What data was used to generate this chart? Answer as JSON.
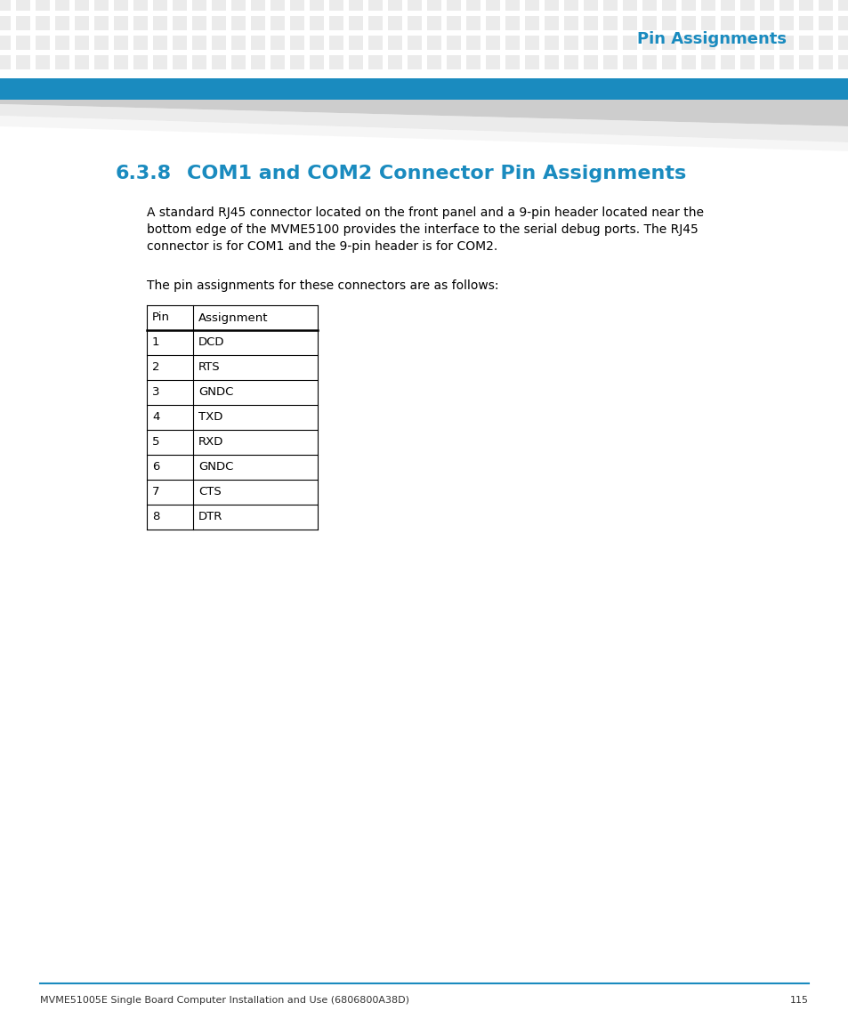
{
  "page_title": "Pin Assignments",
  "section_number": "6.3.8",
  "section_title": "COM1 and COM2 Connector Pin Assignments",
  "body_text_1": "A standard RJ45 connector located on the front panel and a 9-pin header located near the\nbottom edge of the MVME5100 provides the interface to the serial debug ports. The RJ45\nconnector is for COM1 and the 9-pin header is for COM2.",
  "body_text_2": "The pin assignments for these connectors are as follows:",
  "table_headers": [
    "Pin",
    "Assignment"
  ],
  "table_rows": [
    [
      "1",
      "DCD"
    ],
    [
      "2",
      "RTS"
    ],
    [
      "3",
      "GNDC"
    ],
    [
      "4",
      "TXD"
    ],
    [
      "5",
      "RXD"
    ],
    [
      "6",
      "GNDC"
    ],
    [
      "7",
      "CTS"
    ],
    [
      "8",
      "DTR"
    ]
  ],
  "footer_text": "MVME51005E Single Board Computer Installation and Use (6806800A38D)",
  "footer_page": "115",
  "dot_fill_color": "#ebebeb",
  "blue_bar_color": "#1a8bbf",
  "title_color": "#1a8bbf",
  "section_title_color": "#1a8bbf",
  "body_text_color": "#000000",
  "table_border_color": "#000000",
  "background_color": "#ffffff",
  "footer_line_color": "#1a8bbf"
}
